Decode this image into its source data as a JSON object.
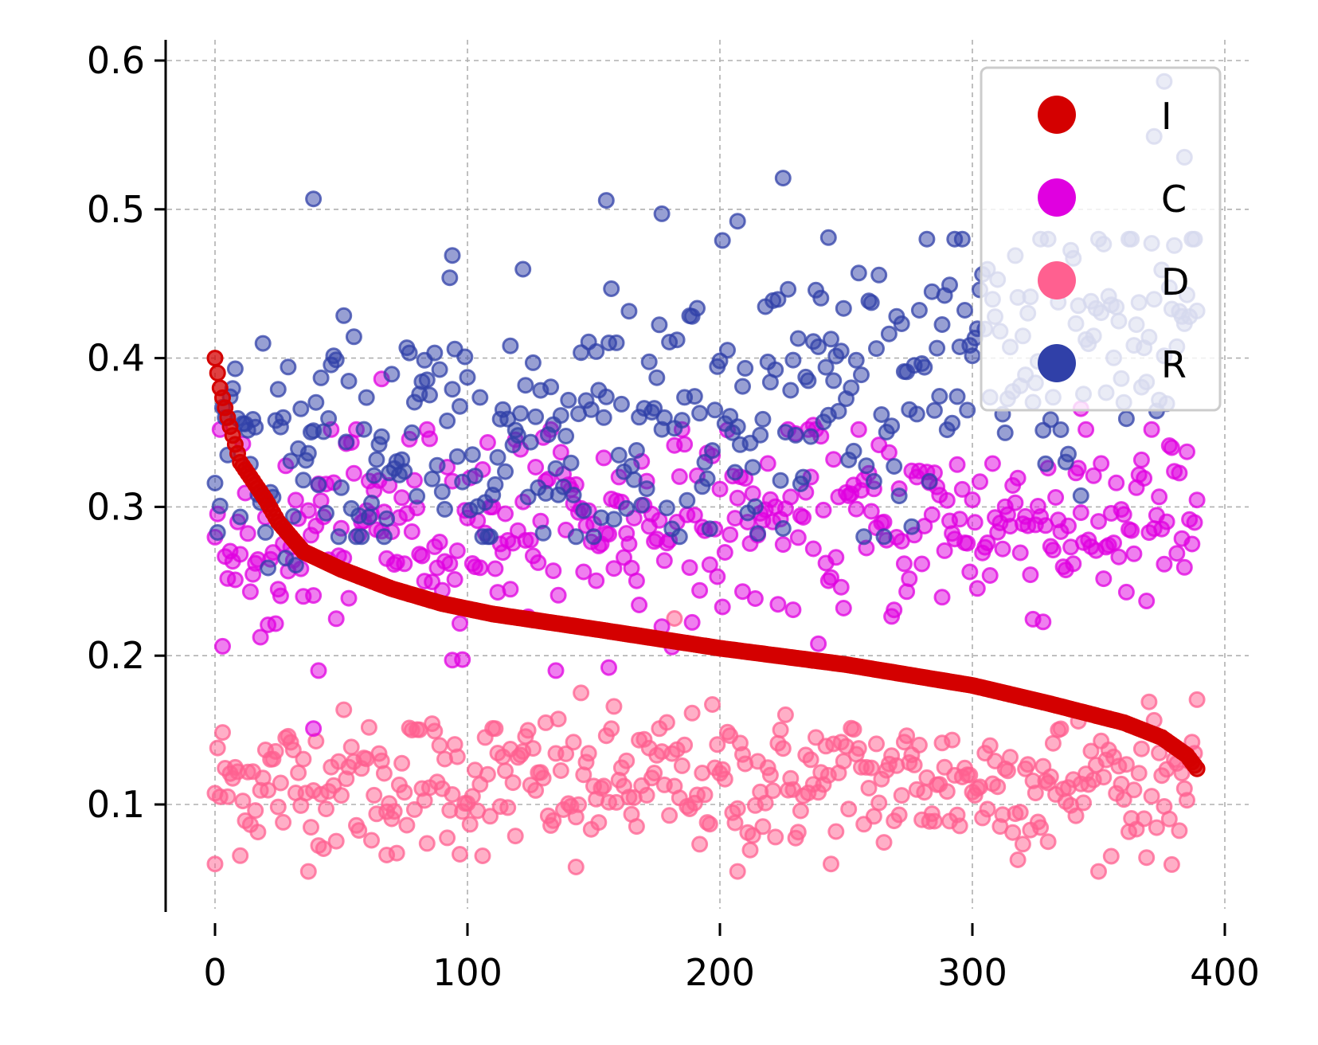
{
  "chart_data": {
    "type": "scatter",
    "title": "",
    "xlabel": "",
    "ylabel": "",
    "xlim": [
      -19.5,
      409.5
    ],
    "ylim": [
      0.03,
      0.615
    ],
    "x_ticks": [
      0,
      100,
      200,
      300,
      400
    ],
    "x_tick_labels": [
      "0",
      "100",
      "200",
      "300",
      "400"
    ],
    "y_ticks": [
      0.1,
      0.2,
      0.3,
      0.4,
      0.5,
      0.6
    ],
    "y_tick_labels": [
      "0.1",
      "0.2",
      "0.3",
      "0.4",
      "0.5",
      "0.6"
    ],
    "grid": true,
    "legend_position": "top-right",
    "n_points_per_series": 390,
    "series": [
      {
        "name": "I",
        "color": "#d40000",
        "description": "sorted descending, about 0.40 at x=0 falling to about 0.125 at x=389",
        "profile": [
          [
            0,
            0.4
          ],
          [
            2,
            0.38
          ],
          [
            5,
            0.36
          ],
          [
            10,
            0.33
          ],
          [
            20,
            0.305
          ],
          [
            25,
            0.29
          ],
          [
            35,
            0.27
          ],
          [
            50,
            0.258
          ],
          [
            70,
            0.245
          ],
          [
            90,
            0.235
          ],
          [
            110,
            0.228
          ],
          [
            150,
            0.218
          ],
          [
            200,
            0.205
          ],
          [
            250,
            0.194
          ],
          [
            300,
            0.18
          ],
          [
            330,
            0.168
          ],
          [
            360,
            0.155
          ],
          [
            375,
            0.145
          ],
          [
            385,
            0.133
          ],
          [
            389,
            0.124
          ]
        ]
      },
      {
        "name": "C",
        "color": "#e000e0",
        "description": "scattered, mostly between 0.19 and 0.35, centered near 0.29",
        "center": 0.29,
        "range": [
          0.15,
          0.39
        ]
      },
      {
        "name": "D",
        "color": "#ff6090",
        "description": "scattered, mostly between 0.06 and 0.18, centered near 0.115",
        "center": 0.115,
        "range": [
          0.055,
          0.225
        ]
      },
      {
        "name": "R",
        "color": "#3040a8",
        "description": "scattered, mostly between 0.25 and 0.52, rising from about 0.32 at x=0 to about 0.42 at x=389",
        "center_start": 0.32,
        "center_end": 0.42,
        "range": [
          0.25,
          0.585
        ]
      }
    ],
    "sample_points": {
      "R": [
        [
          39,
          0.507
        ],
        [
          94,
          0.469
        ],
        [
          155,
          0.506
        ],
        [
          177,
          0.497
        ],
        [
          225,
          0.521
        ],
        [
          243,
          0.481
        ],
        [
          207,
          0.492
        ],
        [
          376,
          0.586
        ],
        [
          384,
          0.535
        ],
        [
          372,
          0.549
        ]
      ],
      "C": [
        [
          66,
          0.386
        ],
        [
          237,
          0.355
        ],
        [
          94,
          0.197
        ],
        [
          41,
          0.19
        ],
        [
          39,
          0.151
        ],
        [
          156,
          0.192
        ],
        [
          343,
          0.366
        ]
      ],
      "D": [
        [
          0,
          0.06
        ],
        [
          143,
          0.058
        ],
        [
          207,
          0.055
        ],
        [
          182,
          0.225
        ],
        [
          68,
          0.066
        ],
        [
          330,
          0.075
        ]
      ]
    }
  }
}
